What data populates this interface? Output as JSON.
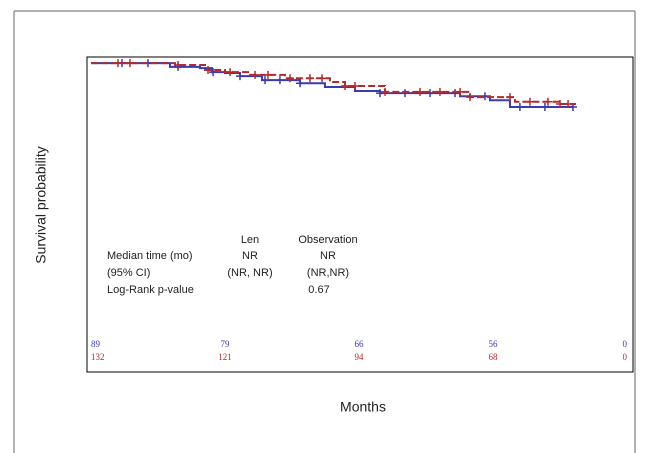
{
  "chart_data": {
    "type": "step",
    "y_label": "Survival probability",
    "x_label": "Months",
    "xlim": [
      0,
      48
    ],
    "ylim": [
      0,
      1.02
    ],
    "series": [
      {
        "name": "Len",
        "color": "#3a3ab4",
        "x": [
          0,
          7.07,
          9.76,
          10.84,
          12.0,
          13.34,
          15.31,
          18.72,
          20.95,
          23.64,
          25.88,
          33.05,
          35.73,
          37.52,
          43.16
        ],
        "values": [
          1.0,
          0.988,
          0.984,
          0.971,
          0.968,
          0.958,
          0.945,
          0.935,
          0.923,
          0.91,
          0.903,
          0.893,
          0.88,
          0.858,
          0.858
        ],
        "censored": [
          2.78,
          5.1,
          7.79,
          10.93,
          13.34,
          15.58,
          16.92,
          18.72,
          25.88,
          28.12,
          30.36,
          32.6,
          35.28,
          38.41,
          40.65,
          43.16
        ],
        "at_risk": [
          89,
          79,
          66,
          56,
          0
        ]
      },
      {
        "name": "Observation",
        "color": "#b42a2a",
        "x": [
          0,
          7.52,
          10.21,
          12.0,
          14.24,
          17.37,
          21.4,
          22.75,
          26.33,
          33.94,
          37.97,
          42.0,
          43.43
        ],
        "values": [
          1.0,
          0.994,
          0.978,
          0.971,
          0.962,
          0.951,
          0.939,
          0.926,
          0.907,
          0.89,
          0.875,
          0.868,
          0.868
        ],
        "censored": [
          2.42,
          3.49,
          7.79,
          10.48,
          12.45,
          14.69,
          15.85,
          17.82,
          19.61,
          20.69,
          22.75,
          23.64,
          26.33,
          29.46,
          31.25,
          33.05,
          33.94,
          37.52,
          39.31,
          40.92,
          42.0,
          42.72
        ],
        "at_risk": [
          132,
          121,
          94,
          68,
          0
        ]
      }
    ],
    "at_risk_x": [
      0,
      12,
      24,
      36,
      48
    ],
    "stats_table": {
      "rows": [
        [
          "Median time (mo)",
          "NR",
          "NR"
        ],
        [
          "(95% CI)",
          "(NR, NR)",
          "(NR,NR)"
        ],
        [
          "Log-Rank p-value",
          "0.67"
        ]
      ]
    }
  }
}
